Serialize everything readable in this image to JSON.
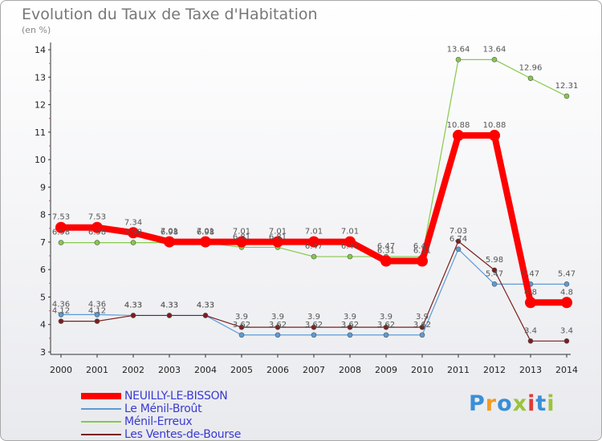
{
  "header": {
    "title": "Evolution du Taux de Taxe d'Habitation",
    "subtitle": "(en %)"
  },
  "logo": {
    "text": "Proxiti",
    "colors": [
      "#3a8fd6",
      "#f39b1e",
      "#3a8fd6",
      "#9ac43c",
      "#e03a3a",
      "#3a8fd6",
      "#9ac43c"
    ]
  },
  "chart_data": {
    "type": "line",
    "title": "Evolution du Taux de Taxe d'Habitation",
    "subtitle": "(en %)",
    "x": [
      "2000",
      "2001",
      "2002",
      "2003",
      "2004",
      "2005",
      "2006",
      "2007",
      "2008",
      "2009",
      "2010",
      "2011",
      "2012",
      "2013",
      "2014"
    ],
    "ylim": [
      3,
      14
    ],
    "yticks": [
      "3",
      "4",
      "5",
      "6",
      "7",
      "8",
      "9",
      "10",
      "11",
      "12",
      "13",
      "14"
    ],
    "grid": false,
    "legend_position": "bottom-left",
    "series": [
      {
        "name": "NEUILLY-LE-BISSON",
        "color": "#ff0000",
        "values": [
          7.53,
          7.53,
          7.34,
          7.01,
          7.01,
          7.01,
          7.01,
          7.01,
          7.01,
          6.31,
          6.31,
          10.88,
          10.88,
          4.8,
          4.8
        ],
        "labels": [
          "7.53",
          "7.53",
          "7.34",
          "7.01",
          "7.01",
          "7.01",
          "7.01",
          "7.01",
          "7.01",
          "6.31",
          "6.31",
          "10.88",
          "10.88",
          "4.8",
          "4.8"
        ]
      },
      {
        "name": "Le Ménil-Broût",
        "color": "#5b9bd5",
        "values": [
          4.36,
          4.36,
          4.33,
          4.33,
          4.33,
          3.62,
          3.62,
          3.62,
          3.62,
          3.62,
          3.62,
          6.74,
          5.47,
          5.47,
          5.47
        ],
        "labels": [
          "4.36",
          "4.36",
          "4.33",
          "4.33",
          "4.33",
          "3.62",
          "3.62",
          "3.62",
          "3.62",
          "3.62",
          "3.62",
          "6.74",
          "5.47",
          "5.47",
          "5.47"
        ]
      },
      {
        "name": "Ménil-Erreux",
        "color": "#86c94a",
        "values": [
          6.98,
          6.98,
          6.98,
          6.98,
          6.98,
          6.81,
          6.81,
          6.47,
          6.47,
          6.47,
          6.47,
          13.64,
          13.64,
          12.96,
          12.31
        ],
        "labels": [
          "6.98",
          "6.98",
          "6.98",
          "6.98",
          "6.98",
          "6.81",
          "6.81",
          "6.47",
          "6.47",
          "6.47",
          "6.47",
          "13.64",
          "13.64",
          "12.96",
          "12.31"
        ]
      },
      {
        "name": "Les Ventes-de-Bourse",
        "color": "#7a1f1f",
        "values": [
          4.12,
          4.12,
          4.33,
          4.33,
          4.33,
          3.9,
          3.9,
          3.9,
          3.9,
          3.9,
          3.9,
          7.03,
          5.98,
          3.4,
          3.4
        ],
        "labels": [
          "4.12",
          "4.12",
          "4.33",
          "4.33",
          "4.33",
          "3.9",
          "3.9",
          "3.9",
          "3.9",
          "3.9",
          "3.9",
          "7.03",
          "5.98",
          "3.4",
          "3.4"
        ]
      }
    ]
  }
}
